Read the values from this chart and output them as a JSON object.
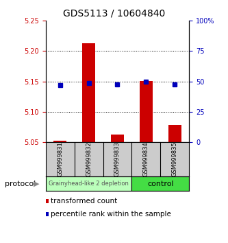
{
  "title": "GDS5113 / 10604840",
  "samples": [
    "GSM999831",
    "GSM999832",
    "GSM999833",
    "GSM999834",
    "GSM999835"
  ],
  "red_values": [
    5.052,
    5.213,
    5.062,
    5.151,
    5.078
  ],
  "blue_values": [
    47.0,
    48.5,
    47.5,
    49.5,
    47.5
  ],
  "ylim_left": [
    5.05,
    5.25
  ],
  "ylim_right": [
    0,
    100
  ],
  "yticks_left": [
    5.05,
    5.1,
    5.15,
    5.2,
    5.25
  ],
  "yticks_right": [
    0,
    25,
    50,
    75,
    100
  ],
  "bar_bottom": 5.05,
  "red_color": "#cc0000",
  "blue_color": "#0000bb",
  "bar_width": 0.45,
  "group1_label": "Grainyhead-like 2 depletion",
  "group2_label": "control",
  "group1_indices": [
    0,
    1,
    2
  ],
  "group2_indices": [
    3,
    4
  ],
  "group1_color": "#bbffbb",
  "group2_color": "#44dd44",
  "protocol_label": "protocol",
  "legend1": "transformed count",
  "legend2": "percentile rank within the sample",
  "tick_color_left": "#cc0000",
  "tick_color_right": "#0000bb",
  "grid_yticks": [
    5.1,
    5.15,
    5.2
  ]
}
